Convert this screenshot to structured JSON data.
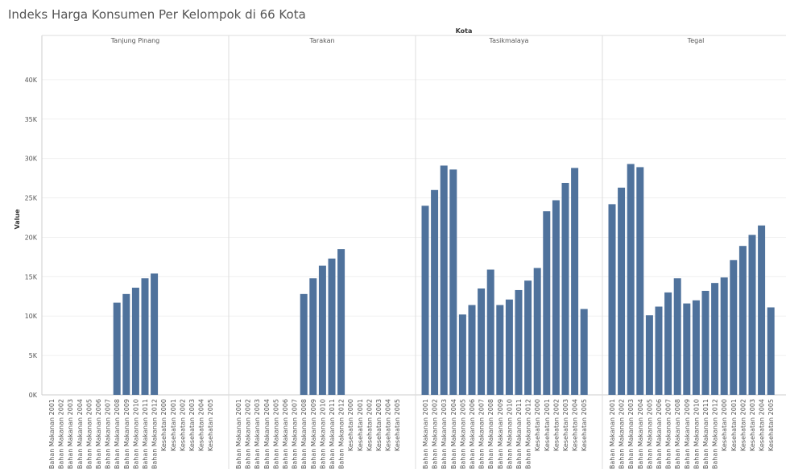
{
  "chart_data": {
    "type": "bar",
    "title": "Indeks Harga Konsumen Per Kelompok di 66 Kota",
    "facet_label": "Kota",
    "ylabel": "Value",
    "color": "#4f729c",
    "grid": true,
    "ylim": [
      0,
      45000
    ],
    "yticks": [
      {
        "value": 0,
        "label": "0K"
      },
      {
        "value": 5000,
        "label": "5K"
      },
      {
        "value": 10000,
        "label": "10K"
      },
      {
        "value": 15000,
        "label": "15K"
      },
      {
        "value": 20000,
        "label": "20K"
      },
      {
        "value": 25000,
        "label": "25K"
      },
      {
        "value": 30000,
        "label": "30K"
      },
      {
        "value": 35000,
        "label": "35K"
      },
      {
        "value": 40000,
        "label": "40K"
      }
    ],
    "categories": [
      "Bahan Makanan 2001",
      "Bahan Makanan 2002",
      "Bahan Makanan 2003",
      "Bahan Makanan 2004",
      "Bahan Makanan 2005",
      "Bahan Makanan 2006",
      "Bahan Makanan 2007",
      "Bahan Makanan 2008",
      "Bahan Makanan 2009",
      "Bahan Makanan 2010",
      "Bahan Makanan 2011",
      "Bahan Makanan 2012",
      "Kesehatan 2000",
      "Kesehatan 2001",
      "Kesehatan 2002",
      "Kesehatan 2003",
      "Kesehatan 2004",
      "Kesehatan 2005"
    ],
    "panels": [
      {
        "name": "Tanjung Pinang",
        "values": [
          null,
          null,
          null,
          null,
          null,
          null,
          null,
          11700,
          12800,
          13600,
          14800,
          15400,
          null,
          null,
          null,
          null,
          null,
          null
        ]
      },
      {
        "name": "Tarakan",
        "values": [
          null,
          null,
          null,
          null,
          null,
          null,
          null,
          12800,
          14800,
          16400,
          17300,
          18500,
          null,
          null,
          null,
          null,
          null,
          null
        ]
      },
      {
        "name": "Tasikmalaya",
        "values": [
          24000,
          26000,
          29100,
          28600,
          10200,
          11400,
          13500,
          15900,
          11400,
          12100,
          13300,
          14500,
          16100,
          23300,
          24700,
          26900,
          28800,
          10900
        ]
      },
      {
        "name": "Tegal",
        "values": [
          24200,
          26300,
          29300,
          28900,
          10100,
          11200,
          13000,
          14800,
          11600,
          12000,
          13200,
          14200,
          14900,
          17100,
          18900,
          20300,
          21500,
          11100
        ]
      }
    ]
  }
}
